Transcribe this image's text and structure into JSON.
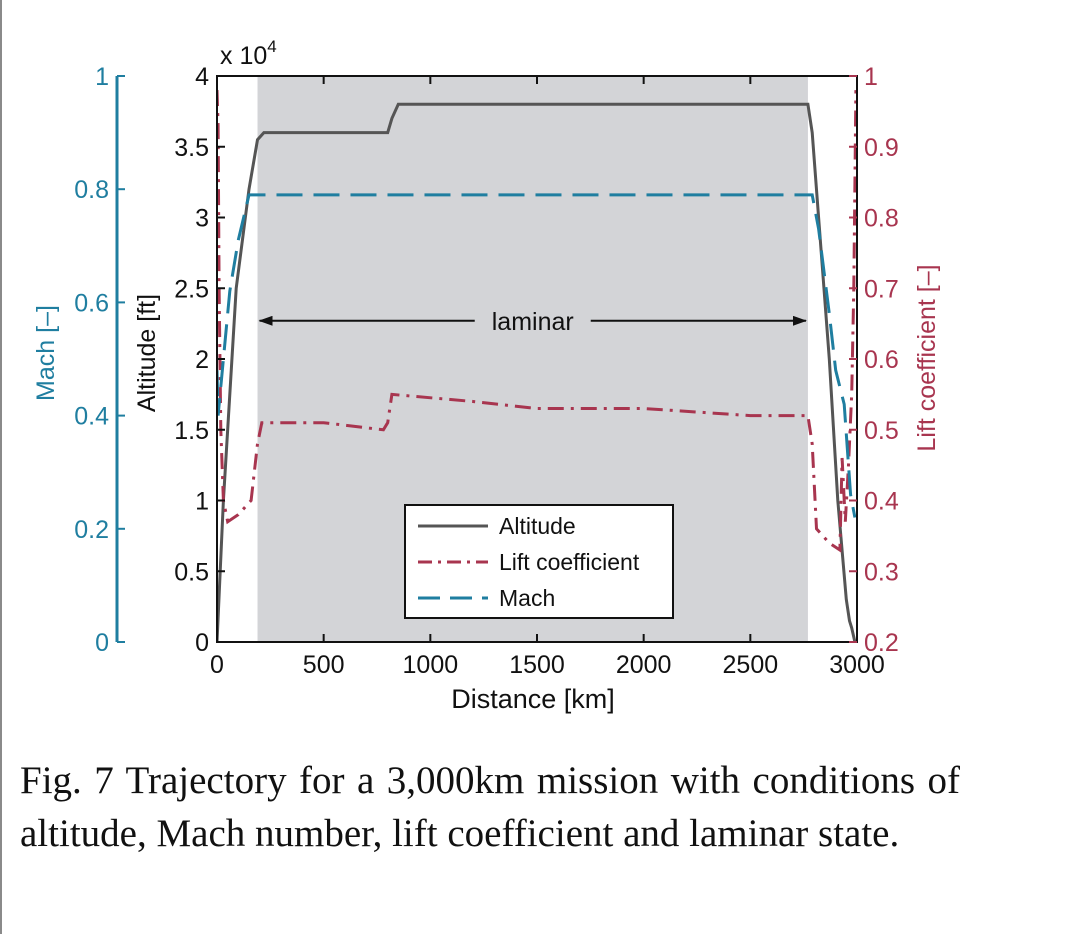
{
  "chart_data": {
    "type": "line",
    "xlabel": "Distance [km]",
    "xlim": [
      0,
      3000
    ],
    "xticks": [
      0,
      500,
      1000,
      1500,
      2000,
      2500,
      3000
    ],
    "y_axes": {
      "altitude": {
        "label": "Altitude [ft]",
        "lim": [
          0,
          40000
        ],
        "ticks": [
          0,
          5000,
          10000,
          15000,
          20000,
          25000,
          30000,
          35000,
          40000
        ],
        "tick_labels": [
          "0",
          "0.5",
          "1",
          "1.5",
          "2",
          "2.5",
          "3",
          "3.5",
          "4"
        ],
        "exponent_label": "x 10",
        "exponent_power": "4",
        "color": "#111111"
      },
      "mach": {
        "label": "Mach [–]",
        "lim": [
          0,
          1
        ],
        "ticks": [
          0,
          0.2,
          0.4,
          0.6,
          0.8,
          1
        ],
        "tick_labels": [
          "0",
          "0.2",
          "0.4",
          "0.6",
          "0.8",
          "1"
        ],
        "color": "#1f7ea0"
      },
      "lift": {
        "label": "Lift coefficient [–]",
        "lim": [
          0.2,
          1
        ],
        "ticks": [
          0.2,
          0.3,
          0.4,
          0.5,
          0.6,
          0.7,
          0.8,
          0.9,
          1
        ],
        "tick_labels": [
          "0.2",
          "0.3",
          "0.4",
          "0.5",
          "0.6",
          "0.7",
          "0.8",
          "0.9",
          "1"
        ],
        "color": "#a8354f"
      }
    },
    "laminar_region": {
      "x_start": 190,
      "x_end": 2770,
      "label": "laminar"
    },
    "series": [
      {
        "name": "Altitude",
        "axis": "altitude",
        "color": "#555555",
        "style": "solid",
        "points": [
          [
            0,
            0
          ],
          [
            30,
            10000
          ],
          [
            90,
            25000
          ],
          [
            150,
            32000
          ],
          [
            190,
            35500
          ],
          [
            220,
            36000
          ],
          [
            800,
            36000
          ],
          [
            820,
            37000
          ],
          [
            850,
            38000
          ],
          [
            2770,
            38000
          ],
          [
            2790,
            36000
          ],
          [
            2820,
            30000
          ],
          [
            2870,
            20000
          ],
          [
            2910,
            10000
          ],
          [
            2950,
            3000
          ],
          [
            2965,
            1500
          ],
          [
            2975,
            1000
          ],
          [
            2990,
            0
          ]
        ]
      },
      {
        "name": "Lift coefficient",
        "axis": "lift",
        "color": "#a8354f",
        "style": "dashdot",
        "points": [
          [
            0,
            0.98
          ],
          [
            5,
            0.93
          ],
          [
            10,
            0.7
          ],
          [
            18,
            0.5
          ],
          [
            30,
            0.4
          ],
          [
            50,
            0.37
          ],
          [
            100,
            0.38
          ],
          [
            160,
            0.4
          ],
          [
            190,
            0.48
          ],
          [
            210,
            0.51
          ],
          [
            500,
            0.51
          ],
          [
            780,
            0.5
          ],
          [
            800,
            0.51
          ],
          [
            820,
            0.55
          ],
          [
            1200,
            0.54
          ],
          [
            1500,
            0.53
          ],
          [
            2000,
            0.53
          ],
          [
            2500,
            0.52
          ],
          [
            2770,
            0.52
          ],
          [
            2790,
            0.48
          ],
          [
            2810,
            0.36
          ],
          [
            2870,
            0.34
          ],
          [
            2920,
            0.33
          ],
          [
            2930,
            0.46
          ],
          [
            2945,
            0.37
          ],
          [
            2960,
            0.45
          ],
          [
            2975,
            0.55
          ],
          [
            2985,
            0.7
          ],
          [
            2995,
            0.98
          ]
        ]
      },
      {
        "name": "Mach",
        "axis": "mach",
        "color": "#1f7ea0",
        "style": "dashed",
        "points": [
          [
            0,
            0.48
          ],
          [
            5,
            0.4
          ],
          [
            15,
            0.44
          ],
          [
            60,
            0.62
          ],
          [
            100,
            0.71
          ],
          [
            150,
            0.79
          ],
          [
            190,
            0.79
          ],
          [
            2790,
            0.79
          ],
          [
            2820,
            0.73
          ],
          [
            2870,
            0.58
          ],
          [
            2900,
            0.48
          ],
          [
            2940,
            0.42
          ],
          [
            2970,
            0.26
          ],
          [
            2990,
            0.22
          ]
        ]
      }
    ],
    "legend": {
      "position": "bottom-center",
      "entries": [
        "Altitude",
        "Lift coefficient",
        "Mach"
      ]
    }
  },
  "caption": "Fig. 7 Trajectory for a 3,000km mission with conditions of altitude, Mach number, lift coefficient and laminar state."
}
